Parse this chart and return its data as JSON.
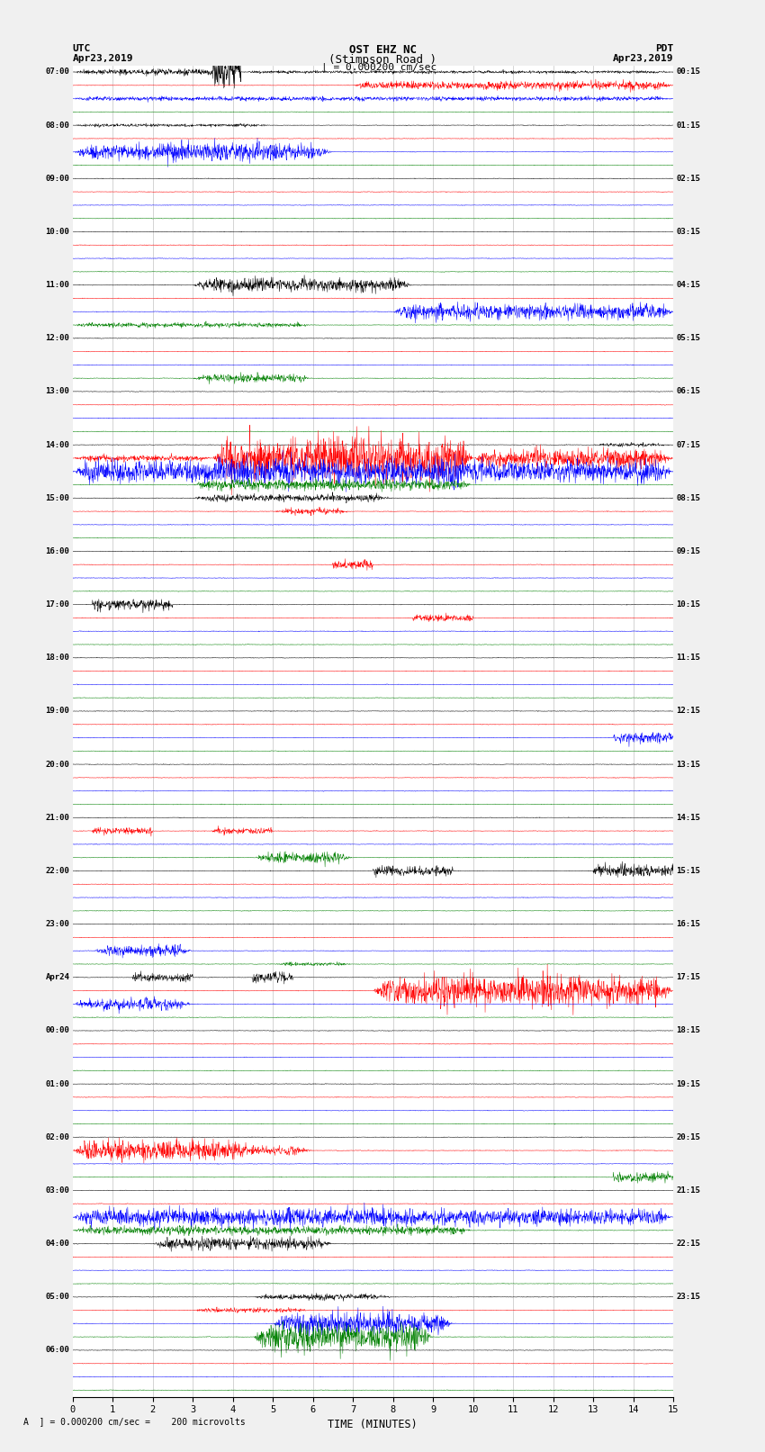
{
  "title_line1": "OST EHZ NC",
  "title_line2": "(Stimpson Road )",
  "title_line3": "| = 0.000200 cm/sec",
  "left_header_line1": "UTC",
  "left_header_line2": "Apr23,2019",
  "right_header_line1": "PDT",
  "right_header_line2": "Apr23,2019",
  "xlabel": "TIME (MINUTES)",
  "footer_text": "A  ] = 0.000200 cm/sec =    200 microvolts",
  "utc_labels": [
    "07:00",
    "08:00",
    "09:00",
    "10:00",
    "11:00",
    "12:00",
    "13:00",
    "14:00",
    "15:00",
    "16:00",
    "17:00",
    "18:00",
    "19:00",
    "20:00",
    "21:00",
    "22:00",
    "23:00",
    "Apr24",
    "00:00",
    "01:00",
    "02:00",
    "03:00",
    "04:00",
    "05:00",
    "06:00"
  ],
  "pdt_labels": [
    "00:15",
    "01:15",
    "02:15",
    "03:15",
    "04:15",
    "05:15",
    "06:15",
    "07:15",
    "08:15",
    "09:15",
    "10:15",
    "11:15",
    "12:15",
    "13:15",
    "14:15",
    "15:15",
    "16:15",
    "17:15",
    "18:15",
    "19:15",
    "20:15",
    "21:15",
    "22:15",
    "23:15",
    ""
  ],
  "trace_color_cycle": [
    "black",
    "red",
    "blue",
    "green"
  ],
  "bg_color": "#f0f0f0",
  "plot_bg": "white",
  "xmin": 0,
  "xmax": 15,
  "xticks": [
    0,
    1,
    2,
    3,
    4,
    5,
    6,
    7,
    8,
    9,
    10,
    11,
    12,
    13,
    14,
    15
  ],
  "n_hours": 25,
  "traces_per_hour": 4,
  "vline_color": "#888888",
  "vline_alpha": 0.5
}
